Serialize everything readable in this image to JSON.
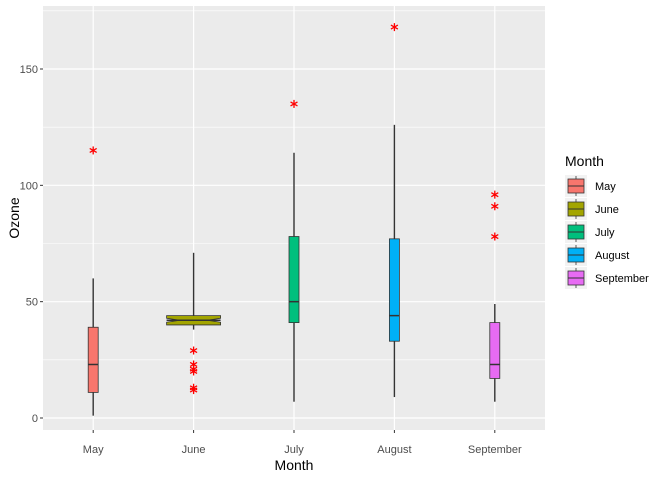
{
  "chart_data": {
    "type": "box",
    "xlabel": "Month",
    "ylabel": "Ozone",
    "ylim": [
      -5,
      172
    ],
    "yticks": [
      0,
      50,
      100,
      150
    ],
    "grid": true,
    "legend_title": "Month",
    "legend_position": "right",
    "categories": [
      "May",
      "June",
      "July",
      "August",
      "September"
    ],
    "colors": [
      "#F8766D",
      "#A3A500",
      "#00BF7D",
      "#00B0F6",
      "#E76BF3"
    ],
    "outlier_color": "#FF0000",
    "series": [
      {
        "name": "May",
        "min": 1,
        "q1": 11,
        "median": 23,
        "q3": 39,
        "max": 60,
        "outliers": [
          115
        ]
      },
      {
        "name": "June",
        "min": 38,
        "q1": 40,
        "median": 42,
        "q3": 44,
        "max": 71,
        "outliers": [
          12,
          13,
          20,
          21,
          23,
          29
        ]
      },
      {
        "name": "July",
        "min": 7,
        "q1": 41,
        "median": 50,
        "q3": 78,
        "max": 114,
        "outliers": [
          135
        ]
      },
      {
        "name": "August",
        "min": 9,
        "q1": 33,
        "median": 44,
        "q3": 77,
        "max": 126,
        "outliers": [
          168
        ]
      },
      {
        "name": "September",
        "min": 7,
        "q1": 17,
        "median": 23,
        "q3": 41,
        "max": 49,
        "outliers": [
          78,
          91,
          96
        ]
      }
    ]
  }
}
